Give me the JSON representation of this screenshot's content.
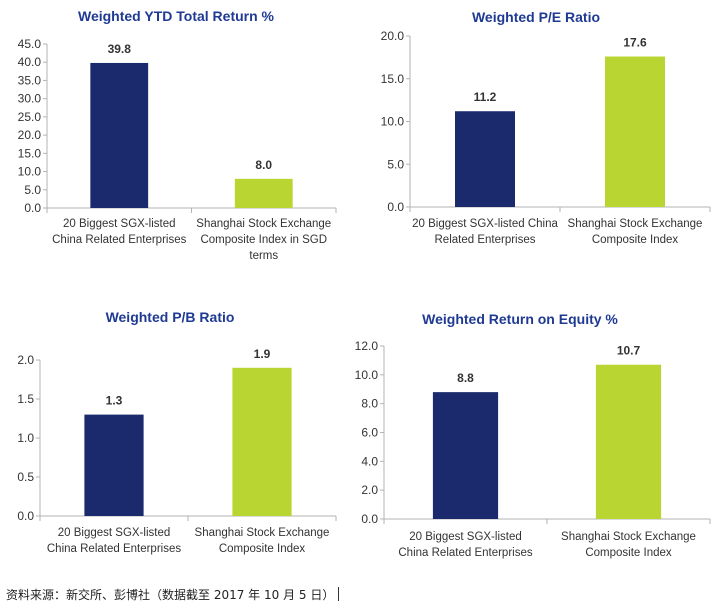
{
  "chart_data": [
    {
      "type": "bar",
      "title": "Weighted YTD Total Return %",
      "categories": [
        [
          "20 Biggest SGX-listed",
          "China Related Enterprises"
        ],
        [
          "Shanghai Stock Exchange",
          "Composite Index in SGD",
          "terms"
        ]
      ],
      "values": [
        39.8,
        8.0
      ],
      "value_labels": [
        "39.8",
        "8.0"
      ],
      "colors": [
        "#1a2a6c",
        "#b9d531"
      ],
      "ylim": [
        0,
        45
      ],
      "yticks": [
        "0.0",
        "5.0",
        "10.0",
        "15.0",
        "20.0",
        "25.0",
        "30.0",
        "35.0",
        "40.0",
        "45.0"
      ],
      "grid": false,
      "xlabel": "",
      "ylabel": ""
    },
    {
      "type": "bar",
      "title": "Weighted P/E Ratio",
      "categories": [
        [
          "20 Biggest SGX-listed China",
          "Related Enterprises"
        ],
        [
          "Shanghai Stock Exchange",
          "Composite Index"
        ]
      ],
      "values": [
        11.2,
        17.6
      ],
      "value_labels": [
        "11.2",
        "17.6"
      ],
      "colors": [
        "#1a2a6c",
        "#b9d531"
      ],
      "ylim": [
        0,
        20
      ],
      "yticks": [
        "0.0",
        "5.0",
        "10.0",
        "15.0",
        "20.0"
      ],
      "grid": false,
      "xlabel": "",
      "ylabel": ""
    },
    {
      "type": "bar",
      "title": "Weighted P/B Ratio",
      "categories": [
        [
          "20 Biggest SGX-listed",
          "China Related Enterprises"
        ],
        [
          "Shanghai Stock Exchange",
          "Composite Index"
        ]
      ],
      "values": [
        1.3,
        1.9
      ],
      "value_labels": [
        "1.3",
        "1.9"
      ],
      "colors": [
        "#1a2a6c",
        "#b9d531"
      ],
      "ylim": [
        0,
        2
      ],
      "yticks": [
        "0.0",
        "0.5",
        "1.0",
        "1.5",
        "2.0"
      ],
      "grid": false,
      "xlabel": "",
      "ylabel": ""
    },
    {
      "type": "bar",
      "title": "Weighted Return on Equity %",
      "categories": [
        [
          "20 Biggest SGX-listed",
          "China Related Enterprises"
        ],
        [
          "Shanghai Stock Exchange",
          "Composite Index"
        ]
      ],
      "values": [
        8.8,
        10.7
      ],
      "value_labels": [
        "8.8",
        "10.7"
      ],
      "colors": [
        "#1a2a6c",
        "#b9d531"
      ],
      "ylim": [
        0,
        12
      ],
      "yticks": [
        "0.0",
        "2.0",
        "4.0",
        "6.0",
        "8.0",
        "10.0",
        "12.0"
      ],
      "grid": false,
      "xlabel": "",
      "ylabel": ""
    }
  ],
  "source": "资料来源：新交所、彭博社（数据截至 2017 年 10 月 5 日）",
  "colors": {
    "title": "#1f3a93",
    "axis": "#b3b3b3",
    "text": "#333333"
  }
}
